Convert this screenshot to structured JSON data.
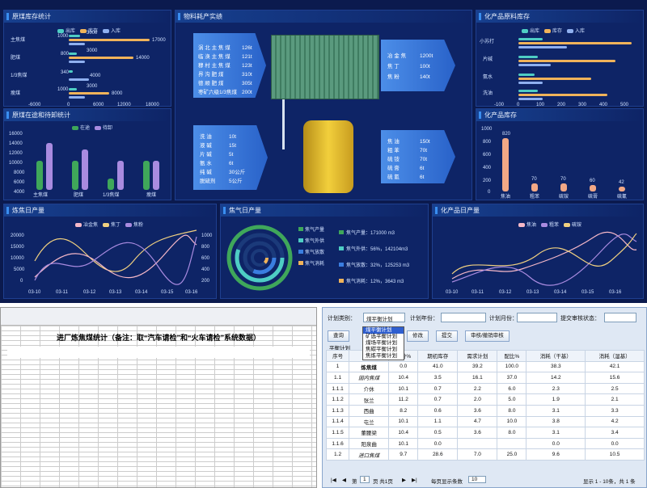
{
  "colors": {
    "bg": "#0b1a4e",
    "panel": "#0e2466",
    "c1": "#4ecdc4",
    "c2": "#f0b35a",
    "c3": "#8fb0f0",
    "c4": "#f5b8c8",
    "green": "#3fa75a",
    "purple": "#a98be0"
  },
  "panels": {
    "p1": "原煤库存统计",
    "p2": "原煤在途和待卸统计",
    "p3": "物料耗产实绩",
    "p4": "化产品原料库存",
    "p5": "化产品库存",
    "p6": "炼焦日产量",
    "p7": "焦气日产量",
    "p8": "化产品日产量"
  },
  "chart_data": [
    {
      "type": "bar",
      "title": "原煤库存统计",
      "legend": [
        "出库",
        "库存",
        "入库"
      ],
      "categories": [
        "主焦煤",
        "肥煤",
        "1/3焦煤",
        "瘦煤"
      ],
      "series": [
        {
          "name": "出库",
          "values": [
            1000,
            800,
            340,
            1000
          ]
        },
        {
          "name": "库存",
          "values": [
            17000,
            14000,
            0,
            8000
          ]
        },
        {
          "name": "入库",
          "values": [
            3000,
            3000,
            4000,
            3000
          ]
        }
      ],
      "xticks": [
        "-6000",
        "0",
        "6000",
        "12000",
        "18000"
      ],
      "labels": {
        "kc_2": "340"
      }
    },
    {
      "type": "bar",
      "title": "原煤在途和待卸统计",
      "legend": [
        "在途",
        "待卸"
      ],
      "categories": [
        "主焦煤",
        "肥煤",
        "1/3焦煤",
        "瘦煤"
      ],
      "series": [
        {
          "name": "在途",
          "values": [
            6000,
            6000,
            2000,
            6000
          ]
        },
        {
          "name": "待卸",
          "values": [
            14000,
            12000,
            9000,
            9000
          ]
        }
      ],
      "yticks": [
        "16000",
        "14000",
        "12000",
        "10000",
        "8000",
        "6000",
        "4000",
        "2000",
        "0"
      ]
    },
    {
      "type": "bar",
      "title": "化产品原料库存",
      "legend": [
        "出库",
        "库存",
        "入库"
      ],
      "categories": [
        "小苏打",
        "片碱",
        "氨水",
        "洗油"
      ],
      "xticks": [
        "-100",
        "0",
        "100",
        "200",
        "300",
        "400",
        "500"
      ]
    },
    {
      "type": "bar",
      "title": "化产品库存",
      "categories": [
        "焦油",
        "粗苯",
        "硫铵",
        "硫膏",
        "硫氰"
      ],
      "values": [
        820,
        70,
        70,
        60,
        42
      ],
      "yticks": [
        "1000",
        "800",
        "600",
        "400",
        "200",
        "0"
      ]
    },
    {
      "type": "line",
      "title": "炼焦日产量",
      "legend": [
        "冶金焦",
        "焦丁",
        "焦粉"
      ],
      "x": [
        "03-10",
        "03-11",
        "03-12",
        "03-13",
        "03-14",
        "03-15",
        "03-16"
      ],
      "yticks": [
        "20000",
        "15000",
        "10000",
        "5000",
        "0"
      ],
      "y2ticks": [
        "1000",
        "800",
        "600",
        "400",
        "200",
        "0"
      ]
    },
    {
      "type": "line",
      "title": "化产品日产量",
      "legend": [
        "焦油",
        "粗苯",
        "硫铵"
      ],
      "x": [
        "03-10",
        "03-11",
        "03-12",
        "03-13",
        "03-14",
        "03-15",
        "03-16"
      ]
    }
  ],
  "material": {
    "coal_in": [
      {
        "k": "涡 北 主 焦 煤",
        "v": "126t"
      },
      {
        "k": "临 涣 主 焦 煤",
        "v": "121t"
      },
      {
        "k": "穆 村 主 焦 煤",
        "v": "123t"
      },
      {
        "k": "界 沟 肥 煤",
        "v": "310t"
      },
      {
        "k": "德 顺 肥 煤",
        "v": "305t"
      },
      {
        "k": "枣矿六级1/3焦煤",
        "v": "200t"
      }
    ],
    "coke_out": [
      {
        "k": "冶 金 焦",
        "v": "1200t"
      },
      {
        "k": "焦   丁",
        "v": "100t"
      },
      {
        "k": "焦   粉",
        "v": "140t"
      }
    ],
    "chem_in": [
      {
        "k": "洗  油",
        "v": "10t"
      },
      {
        "k": "液  碱",
        "v": "15t"
      },
      {
        "k": "片  碱",
        "v": "5t"
      },
      {
        "k": "氨  水",
        "v": "6t"
      },
      {
        "k": "纯  碱",
        "v": "30公斤"
      },
      {
        "k": "脱硫剂",
        "v": "5公斤"
      }
    ],
    "chem_out": [
      {
        "k": "焦  油",
        "v": "150t"
      },
      {
        "k": "粗  苯",
        "v": "70t"
      },
      {
        "k": "硫  铵",
        "v": "70t"
      },
      {
        "k": "硫  膏",
        "v": "6t"
      },
      {
        "k": "硫  氰",
        "v": "6t"
      }
    ]
  },
  "gas": {
    "legend": [
      "焦气产量",
      "焦气外供",
      "焦气放散",
      "焦气消耗"
    ],
    "values": [
      "焦气产量：171000 m3",
      "焦气外供：56%，142104m3",
      "焦气放散：32%，125253 m3",
      "焦气消耗：12%，3643 m3"
    ]
  },
  "sheet": {
    "title": "进厂炼焦煤统计（备注：取“汽车请检”和“火车请检”系统数据）"
  },
  "form": {
    "plan_type_label": "计划类别：",
    "plan_type_value": "煤平衡计划",
    "year_label": "计划年份：",
    "month_label": "计划月份：",
    "status_label": "提交审核状态：",
    "options": [
      "煤平衡计划",
      "矿选平衡计划",
      "煤场平衡计划",
      "焦碳平衡计划",
      "焦炼平衡计划"
    ],
    "buttons": {
      "query": "查询",
      "modify": "修改",
      "submit": "提交",
      "review": "审核/撤销审核"
    },
    "section": "平衡计划",
    "columns": [
      "序号",
      "",
      "水分%",
      "期初库存",
      "需求计划",
      "配比%",
      "消耗（干基）",
      "消耗（湿基）"
    ],
    "rows": [
      [
        "1",
        "炼焦煤",
        "0.0",
        "41.0",
        "39.2",
        "100.0",
        "38.3",
        "42.1"
      ],
      [
        "1.1",
        "国内焦煤",
        "10.4",
        "3.5",
        "16.1",
        "37.0",
        "14.2",
        "15.6"
      ],
      [
        "1.1.1",
        "介休",
        "10.1",
        "0.7",
        "2.2",
        "6.0",
        "2.3",
        "2.5"
      ],
      [
        "1.1.2",
        "张兰",
        "11.2",
        "0.7",
        "2.0",
        "5.0",
        "1.9",
        "2.1"
      ],
      [
        "1.1.3",
        "西曲",
        "8.2",
        "0.6",
        "3.6",
        "8.0",
        "3.1",
        "3.3"
      ],
      [
        "1.1.4",
        "屯兰",
        "10.1",
        "1.1",
        "4.7",
        "10.0",
        "3.8",
        "4.2"
      ],
      [
        "1.1.5",
        "董腰梁",
        "10.4",
        "0.5",
        "3.6",
        "8.0",
        "3.1",
        "3.4"
      ],
      [
        "1.1.6",
        "阳泉曲",
        "10.1",
        "0.0",
        "",
        "",
        "0.0",
        "0.0"
      ],
      [
        "1.2",
        "进口焦煤",
        "9.7",
        "28.6",
        "7.0",
        "25.0",
        "9.6",
        "10.5"
      ]
    ],
    "footer": {
      "page": "第",
      "page_num": "1",
      "page_total": "页 共1页",
      "per_page": "每页显示条数",
      "per_page_value": "10",
      "summary": "显示 1 - 10条，共 1 条"
    }
  }
}
